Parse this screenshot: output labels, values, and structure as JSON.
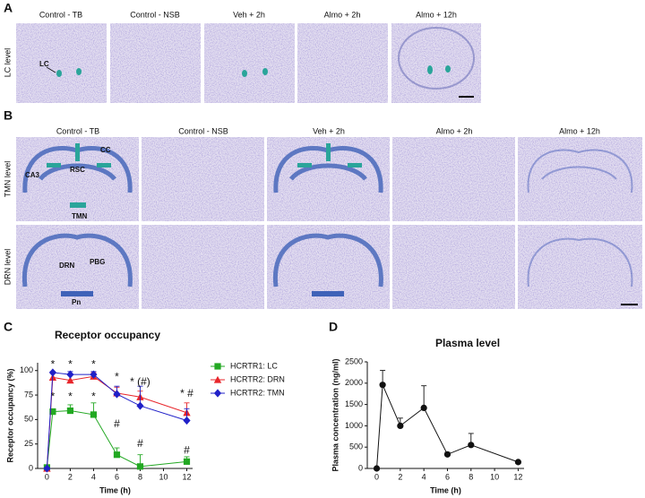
{
  "panel_a": {
    "label": "A",
    "row_label": "LC level",
    "headers": [
      "Control - TB",
      "Control - NSB",
      "Veh + 2h",
      "Almo + 2h",
      "Almo + 12h"
    ],
    "region_labels": [
      "LC"
    ]
  },
  "panel_b": {
    "label": "B",
    "row_labels": [
      "TMN level",
      "DRN level"
    ],
    "headers": [
      "Control - TB",
      "Control - NSB",
      "Veh + 2h",
      "Almo + 2h",
      "Almo + 12h"
    ],
    "region_labels": [
      "CC",
      "RSC",
      "CA3",
      "TMN",
      "DRN",
      "PBG",
      "Pn"
    ]
  },
  "chart_data": [
    {
      "type": "line",
      "panel": "C",
      "title": "Receptor occupancy",
      "x_label": "Time (h)",
      "y_label": "Receptor occupancy (%)",
      "x": [
        0,
        0.5,
        2,
        4,
        6,
        8,
        12
      ],
      "series": [
        {
          "name": "HCRTR1: LC",
          "color": "#22a822",
          "marker": "square",
          "values": [
            1,
            58,
            59,
            55,
            14,
            2,
            7
          ],
          "errors": [
            0,
            3,
            6,
            12,
            7,
            12,
            5
          ]
        },
        {
          "name": "HCRTR2: DRN",
          "color": "#e8262b",
          "marker": "triangle",
          "values": [
            0,
            93,
            90,
            94,
            77,
            73,
            57
          ],
          "errors": [
            0,
            4,
            5,
            4,
            6,
            6,
            10
          ]
        },
        {
          "name": "HCRTR2: TMN",
          "color": "#2020c8",
          "marker": "diamond",
          "values": [
            0,
            98,
            96,
            96,
            76,
            64,
            49
          ],
          "errors": [
            0,
            1,
            3,
            3,
            8,
            20,
            12
          ]
        }
      ],
      "annotations": [
        {
          "text": "*",
          "x": 0.5,
          "y": 106
        },
        {
          "text": "*",
          "x": 2,
          "y": 106
        },
        {
          "text": "*",
          "x": 4,
          "y": 106
        },
        {
          "text": "*",
          "x": 0.5,
          "y": 73
        },
        {
          "text": "*",
          "x": 2,
          "y": 73
        },
        {
          "text": "*",
          "x": 4,
          "y": 73
        },
        {
          "text": "*",
          "x": 6,
          "y": 93
        },
        {
          "text": "* (#)",
          "x": 8,
          "y": 88
        },
        {
          "text": "* #",
          "x": 12,
          "y": 76
        },
        {
          "text": "#",
          "x": 6,
          "y": 45
        },
        {
          "text": "#",
          "x": 8,
          "y": 25
        },
        {
          "text": "#",
          "x": 12,
          "y": 18
        }
      ],
      "xlim": [
        -0.8,
        12.5
      ],
      "xticks": [
        0,
        2,
        4,
        6,
        8,
        10,
        12
      ],
      "ylim": [
        0,
        108
      ],
      "yticks": [
        0,
        25,
        50,
        75,
        100
      ],
      "legend": "right"
    },
    {
      "type": "line",
      "panel": "D",
      "title": "Plasma level",
      "x_label": "Time (h)",
      "y_label": "Plasma concentration (ng/ml)",
      "x": [
        0,
        0.5,
        2,
        4,
        6,
        8,
        12
      ],
      "series": [
        {
          "color": "#111111",
          "marker": "circle",
          "values": [
            0,
            1960,
            1000,
            1420,
            330,
            550,
            150
          ],
          "errors": [
            0,
            340,
            180,
            520,
            50,
            270,
            0
          ]
        }
      ],
      "xlim": [
        -0.8,
        12.5
      ],
      "xticks": [
        0,
        2,
        4,
        6,
        8,
        10,
        12
      ],
      "ylim": [
        0,
        2500
      ],
      "yticks": [
        0,
        500,
        1000,
        1500,
        2000,
        2500
      ]
    }
  ]
}
